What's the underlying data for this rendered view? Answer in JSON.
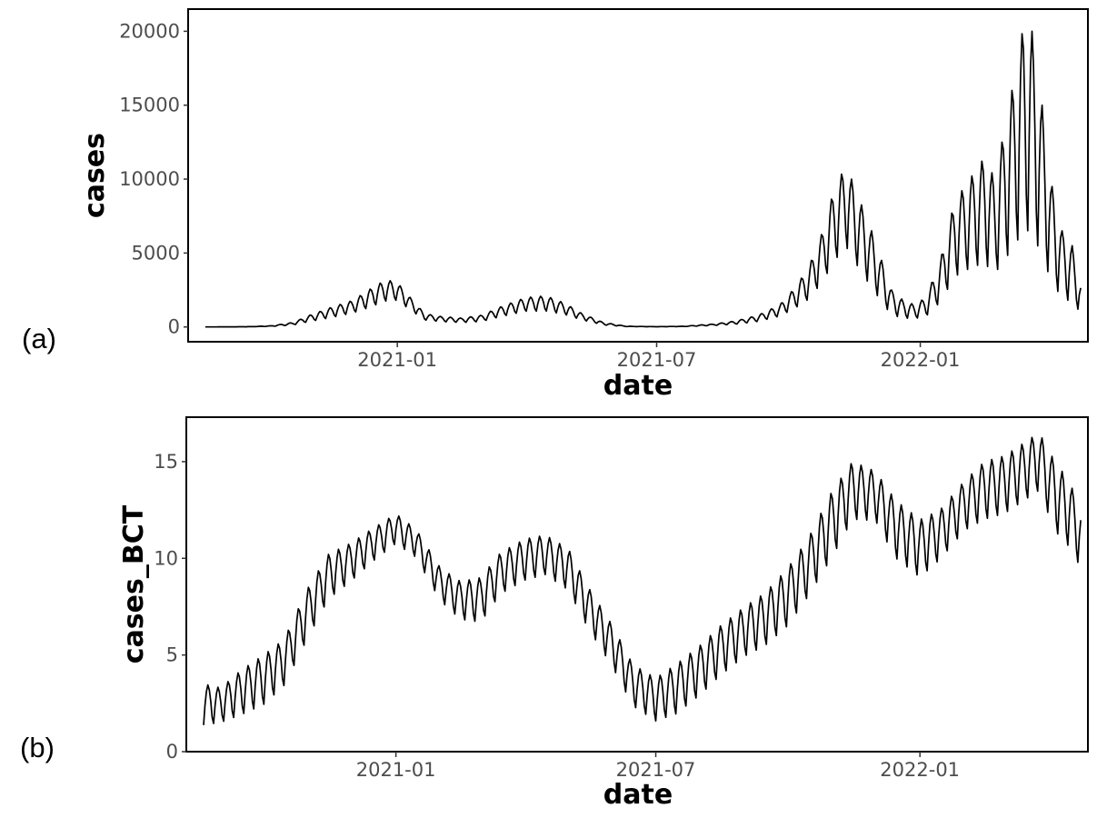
{
  "panel_labels": [
    "(a)",
    "(b)"
  ],
  "chart_data": [
    {
      "type": "line",
      "panel": "(a)",
      "xlabel": "date",
      "ylabel": "cases",
      "x_range": [
        "2020-08-08",
        "2022-04-28"
      ],
      "ylim": [
        -1000,
        21500
      ],
      "x_ticks": [
        {
          "date": "2021-01-01",
          "label": "2021-01"
        },
        {
          "date": "2021-07-01",
          "label": "2021-07"
        },
        {
          "date": "2022-01-01",
          "label": "2022-01"
        }
      ],
      "y_ticks": [
        {
          "value": 0,
          "label": "0"
        },
        {
          "value": 5000,
          "label": "5000"
        },
        {
          "value": 10000,
          "label": "10000"
        },
        {
          "value": 15000,
          "label": "15000"
        },
        {
          "value": 20000,
          "label": "20000"
        }
      ],
      "grid": false,
      "series": [
        {
          "x": [
            "2020-08-20",
            "2020-09-20",
            "2020-10-05",
            "2020-10-20",
            "2020-11-01",
            "2020-11-15",
            "2020-12-01",
            "2020-12-12",
            "2020-12-24",
            "2021-01-01",
            "2021-01-10",
            "2021-01-20",
            "2021-02-01",
            "2021-02-15",
            "2021-03-01",
            "2021-03-15",
            "2021-04-01",
            "2021-04-15",
            "2021-04-28",
            "2021-05-10",
            "2021-05-25",
            "2021-06-10",
            "2021-07-01",
            "2021-07-20",
            "2021-08-10",
            "2021-08-25",
            "2021-09-10",
            "2021-09-25",
            "2021-10-05",
            "2021-10-15",
            "2021-10-25",
            "2021-11-01",
            "2021-11-10",
            "2021-11-20",
            "2021-11-28",
            "2021-12-05",
            "2021-12-12",
            "2021-12-20",
            "2021-12-28",
            "2022-01-05",
            "2022-01-15",
            "2022-01-25",
            "2022-02-01",
            "2022-02-08",
            "2022-02-15",
            "2022-02-22",
            "2022-03-01",
            "2022-03-08",
            "2022-03-14",
            "2022-03-20",
            "2022-03-27",
            "2022-04-03",
            "2022-04-10",
            "2022-04-17",
            "2022-04-23"
          ],
          "values": [
            0,
            20,
            80,
            300,
            800,
            1300,
            1800,
            2500,
            3200,
            3000,
            2000,
            900,
            700,
            600,
            800,
            1400,
            2000,
            2100,
            1600,
            900,
            300,
            50,
            20,
            50,
            200,
            400,
            800,
            1500,
            2600,
            4000,
            6500,
            9000,
            11000,
            8500,
            6500,
            4500,
            2500,
            1800,
            1500,
            2000,
            4500,
            8500,
            9500,
            10500,
            11500,
            10000,
            13500,
            17000,
            20400,
            20000,
            15000,
            9500,
            6500,
            5500,
            3000
          ],
          "trough_values": [
            0,
            10,
            30,
            100,
            300,
            500,
            800,
            1100,
            1500,
            1600,
            1000,
            400,
            300,
            250,
            300,
            600,
            900,
            900,
            700,
            400,
            100,
            20,
            10,
            20,
            80,
            150,
            300,
            600,
            1000,
            1500,
            2500,
            3500,
            4500,
            3000,
            2000,
            1200,
            500,
            400,
            400,
            500,
            1200,
            2500,
            2800,
            3000,
            3000,
            2500,
            3000,
            3500,
            4200,
            4000,
            3000,
            1800,
            1200,
            1000,
            600
          ]
        }
      ]
    },
    {
      "type": "line",
      "panel": "(b)",
      "xlabel": "date",
      "ylabel": "cases_BCT",
      "x_range": [
        "2020-08-08",
        "2022-04-28"
      ],
      "ylim": [
        0,
        17.3
      ],
      "x_ticks": [
        {
          "date": "2021-01-01",
          "label": "2021-01"
        },
        {
          "date": "2021-07-01",
          "label": "2021-07"
        },
        {
          "date": "2022-01-01",
          "label": "2022-01"
        }
      ],
      "y_ticks": [
        {
          "value": 0,
          "label": "0"
        },
        {
          "value": 5,
          "label": "5"
        },
        {
          "value": 10,
          "label": "10"
        },
        {
          "value": 15,
          "label": "15"
        }
      ],
      "grid": false,
      "series": [
        {
          "x": [
            "2020-08-20",
            "2020-09-01",
            "2020-09-15",
            "2020-10-01",
            "2020-10-15",
            "2020-11-01",
            "2020-11-15",
            "2020-12-01",
            "2020-12-15",
            "2021-01-01",
            "2021-01-15",
            "2021-02-01",
            "2021-02-15",
            "2021-03-01",
            "2021-03-15",
            "2021-04-01",
            "2021-04-15",
            "2021-05-01",
            "2021-05-15",
            "2021-06-01",
            "2021-06-15",
            "2021-07-01",
            "2021-07-15",
            "2021-08-01",
            "2021-08-15",
            "2021-09-01",
            "2021-09-15",
            "2021-10-01",
            "2021-10-15",
            "2021-11-01",
            "2021-11-15",
            "2021-12-01",
            "2021-12-15",
            "2022-01-01",
            "2022-01-15",
            "2022-02-01",
            "2022-02-15",
            "2022-03-01",
            "2022-03-15",
            "2022-03-25",
            "2022-04-05",
            "2022-04-15",
            "2022-04-23"
          ],
          "values": [
            3.5,
            3.3,
            4.2,
            5.0,
            5.8,
            8.5,
            10.2,
            10.8,
            11.5,
            12.3,
            11.5,
            9.5,
            8.8,
            9.0,
            10.3,
            11.0,
            11.2,
            10.5,
            8.5,
            6.5,
            4.5,
            3.8,
            4.5,
            5.5,
            6.5,
            7.5,
            8.2,
            9.5,
            11.0,
            13.5,
            15.0,
            14.5,
            13.0,
            12.0,
            12.5,
            14.0,
            15.0,
            15.3,
            16.0,
            16.5,
            15.0,
            14.0,
            12.5
          ],
          "trough_values": [
            1.0,
            1.2,
            1.5,
            2.0,
            3.0,
            5.5,
            7.5,
            8.5,
            9.5,
            10.5,
            9.8,
            7.5,
            6.5,
            6.3,
            7.8,
            8.5,
            8.8,
            8.0,
            6.0,
            4.0,
            2.0,
            1.2,
            1.5,
            2.5,
            3.5,
            4.5,
            5.0,
            6.0,
            7.5,
            9.5,
            11.5,
            11.5,
            9.5,
            8.5,
            9.5,
            11.0,
            11.5,
            11.8,
            12.5,
            13.0,
            10.8,
            10.0,
            9.0
          ]
        }
      ]
    }
  ]
}
